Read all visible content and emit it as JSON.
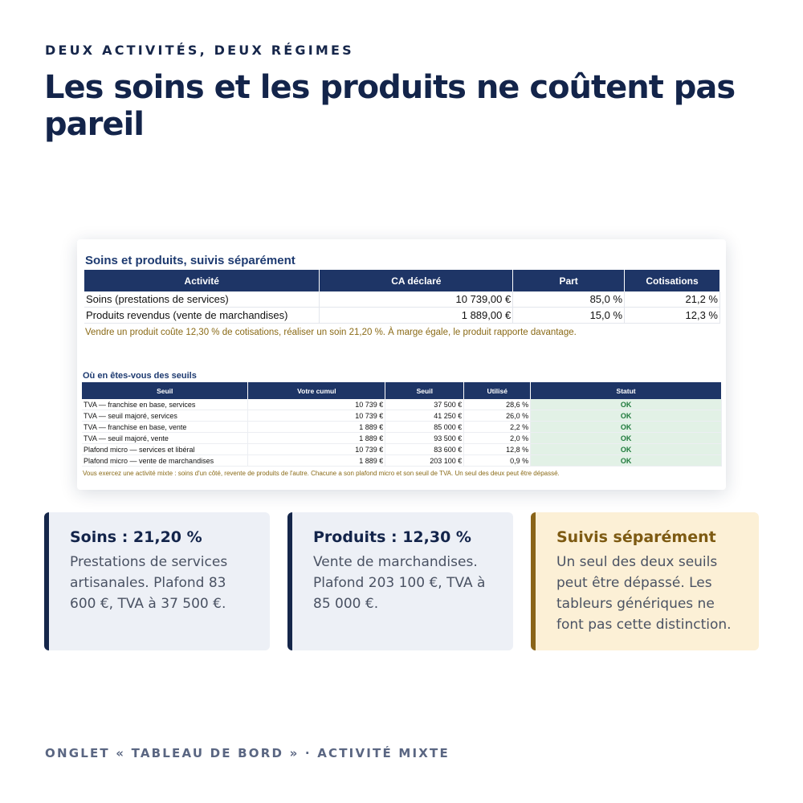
{
  "eyebrow": "DEUX ACTIVITÉS, DEUX RÉGIMES",
  "headline": "Les soins et les produits ne coûtent pas pareil",
  "sheet": {
    "title": "Soins et produits, suivis séparément",
    "table1": {
      "headers": [
        "Activité",
        "CA déclaré",
        "Part",
        "Cotisations"
      ],
      "rows": [
        [
          "Soins (prestations de services)",
          "10 739,00 €",
          "85,0 %",
          "21,2 %"
        ],
        [
          "Produits revendus (vente de marchandises)",
          "1 889,00 €",
          "15,0 %",
          "12,3 %"
        ]
      ]
    },
    "note1": "Vendre un produit coûte 12,30 % de cotisations, réaliser un soin 21,20 %. À marge égale, le produit rapporte davantage.",
    "subtitle": "Où en êtes-vous des seuils",
    "table2": {
      "headers": [
        "Seuil",
        "Votre cumul",
        "Seuil",
        "Utilisé",
        "Statut"
      ],
      "rows": [
        [
          "TVA — franchise en base, services",
          "10 739 €",
          "37 500 €",
          "28,6 %",
          "OK"
        ],
        [
          "TVA — seuil majoré, services",
          "10 739 €",
          "41 250 €",
          "26,0 %",
          "OK"
        ],
        [
          "TVA — franchise en base, vente",
          "1 889 €",
          "85 000 €",
          "2,2 %",
          "OK"
        ],
        [
          "TVA — seuil majoré, vente",
          "1 889 €",
          "93 500 €",
          "2,0 %",
          "OK"
        ],
        [
          "Plafond micro — services et libéral",
          "10 739 €",
          "83 600 €",
          "12,8 %",
          "OK"
        ],
        [
          "Plafond micro — vente de marchandises",
          "1 889 €",
          "203 100 €",
          "0,9 %",
          "OK"
        ]
      ]
    },
    "note2": "Vous exercez une activité mixte : soins d'un côté, revente de produits de l'autre. Chacune a son plafond micro et son seuil de TVA. Un seul des deux peut être dépassé."
  },
  "cards": [
    {
      "title": "Soins : 21,20 %",
      "body": "Prestations de services artisanales. Plafond 83 600 €, TVA à 37 500 €."
    },
    {
      "title": "Produits : 12,30 %",
      "body": "Vente de marchandises. Plafond 203 100 €, TVA à 85 000 €."
    },
    {
      "title": "Suivis séparément",
      "body": "Un seul des deux seuils peut être dépassé. Les tableurs génériques ne font pas cette distinction."
    }
  ],
  "footer": "ONGLET « TABLEAU DE BORD » · ACTIVITÉ MIXTE",
  "colors": {
    "navy": "#13244a",
    "header_fill": "#1e3566",
    "gold": "#8a6418",
    "ok_green": "#1f7a3c"
  }
}
